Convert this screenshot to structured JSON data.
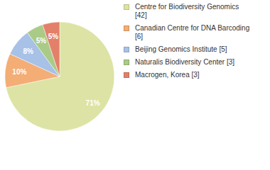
{
  "chart_data": {
    "type": "pie",
    "categories": [
      "Centre for Biodiversity Genomics [42]",
      "Canadian Centre for DNA Barcoding [6]",
      "Beijing Genomics Institute [5]",
      "Naturalis Biodiversity Center [3]",
      "Macrogen, Korea [3]"
    ],
    "values": [
      71,
      10,
      8,
      5,
      5
    ],
    "value_labels": [
      "71%",
      "10%",
      "8%",
      "5%",
      "5%"
    ],
    "colors": [
      "#dde3a4",
      "#f3ad75",
      "#a7c1e7",
      "#a9cb87",
      "#e3806a"
    ],
    "data_labels": true,
    "legend": "right"
  }
}
